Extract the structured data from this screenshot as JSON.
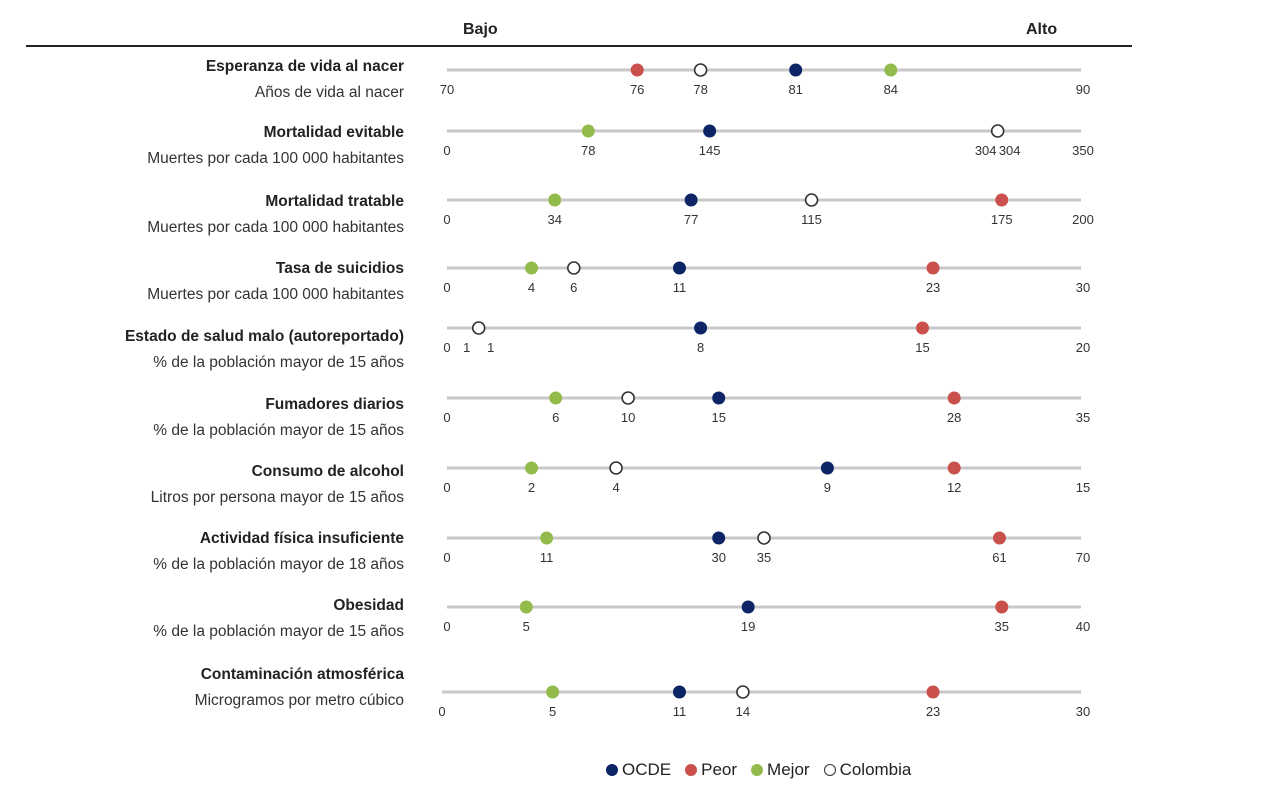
{
  "chart_data": {
    "type": "scatter",
    "scale_labels": {
      "low": "Bajo",
      "high": "Alto"
    },
    "series": [
      {
        "name": "OCDE",
        "color": "#0d2466",
        "style": "filled"
      },
      {
        "name": "Peor",
        "color": "#c9504b",
        "style": "filled"
      },
      {
        "name": "Mejor",
        "color": "#93bb4b",
        "style": "filled"
      },
      {
        "name": "Colombia",
        "color": "#ffffff",
        "stroke": "#333333",
        "style": "open"
      }
    ],
    "legend_position": "bottom",
    "rows": [
      {
        "title": "Esperanza de vida al nacer",
        "subtitle": "Años de vida al nacer",
        "min": 70,
        "max": 90,
        "values": {
          "OCDE": 81,
          "Peor": 76,
          "Mejor": 84,
          "Colombia": 78
        }
      },
      {
        "title": "Mortalidad evitable",
        "subtitle": "Muertes por cada 100 000 habitantes",
        "min": 0,
        "max": 350,
        "values": {
          "OCDE": 145,
          "Peor": 304,
          "Mejor": 78,
          "Colombia": 304
        }
      },
      {
        "title": "Mortalidad tratable",
        "subtitle": "Muertes por cada 100 000 habitantes",
        "min": 0,
        "max": 200,
        "values": {
          "OCDE": 77,
          "Peor": 175,
          "Mejor": 34,
          "Colombia": 115
        }
      },
      {
        "title": "Tasa de suicidios",
        "subtitle": "Muertes por cada 100 000 habitantes",
        "min": 0,
        "max": 30,
        "values": {
          "OCDE": 11,
          "Peor": 23,
          "Mejor": 4,
          "Colombia": 6
        }
      },
      {
        "title": "Estado de salud malo (autoreportado)",
        "subtitle": "% de la población mayor de 15 años",
        "min": 0,
        "max": 20,
        "values": {
          "OCDE": 8,
          "Peor": 15,
          "Mejor": 1,
          "Colombia": 1
        }
      },
      {
        "title": "Fumadores diarios",
        "subtitle": "% de la población mayor de 15 años",
        "min": 0,
        "max": 35,
        "values": {
          "OCDE": 15,
          "Peor": 28,
          "Mejor": 6,
          "Colombia": 10
        }
      },
      {
        "title": "Consumo de alcohol",
        "subtitle": "Litros por persona mayor de 15 años",
        "min": 0,
        "max": 15,
        "values": {
          "OCDE": 9,
          "Peor": 12,
          "Mejor": 2,
          "Colombia": 4
        }
      },
      {
        "title": "Actividad física insuficiente",
        "subtitle": "% de la población mayor de 18 años",
        "min": 0,
        "max": 70,
        "values": {
          "OCDE": 30,
          "Peor": 61,
          "Mejor": 11,
          "Colombia": 35
        }
      },
      {
        "title": "Obesidad",
        "subtitle": "% de la población mayor de 15 años",
        "min": 0,
        "max": 40,
        "values": {
          "OCDE": 19,
          "Peor": 35,
          "Mejor": 5
        }
      },
      {
        "title": "Contaminación atmosférica",
        "subtitle": "Microgramos por metro cúbico",
        "min": 0,
        "max": 30,
        "values": {
          "OCDE": 11,
          "Peor": 23,
          "Mejor": 5,
          "Colombia": 14
        }
      }
    ]
  }
}
